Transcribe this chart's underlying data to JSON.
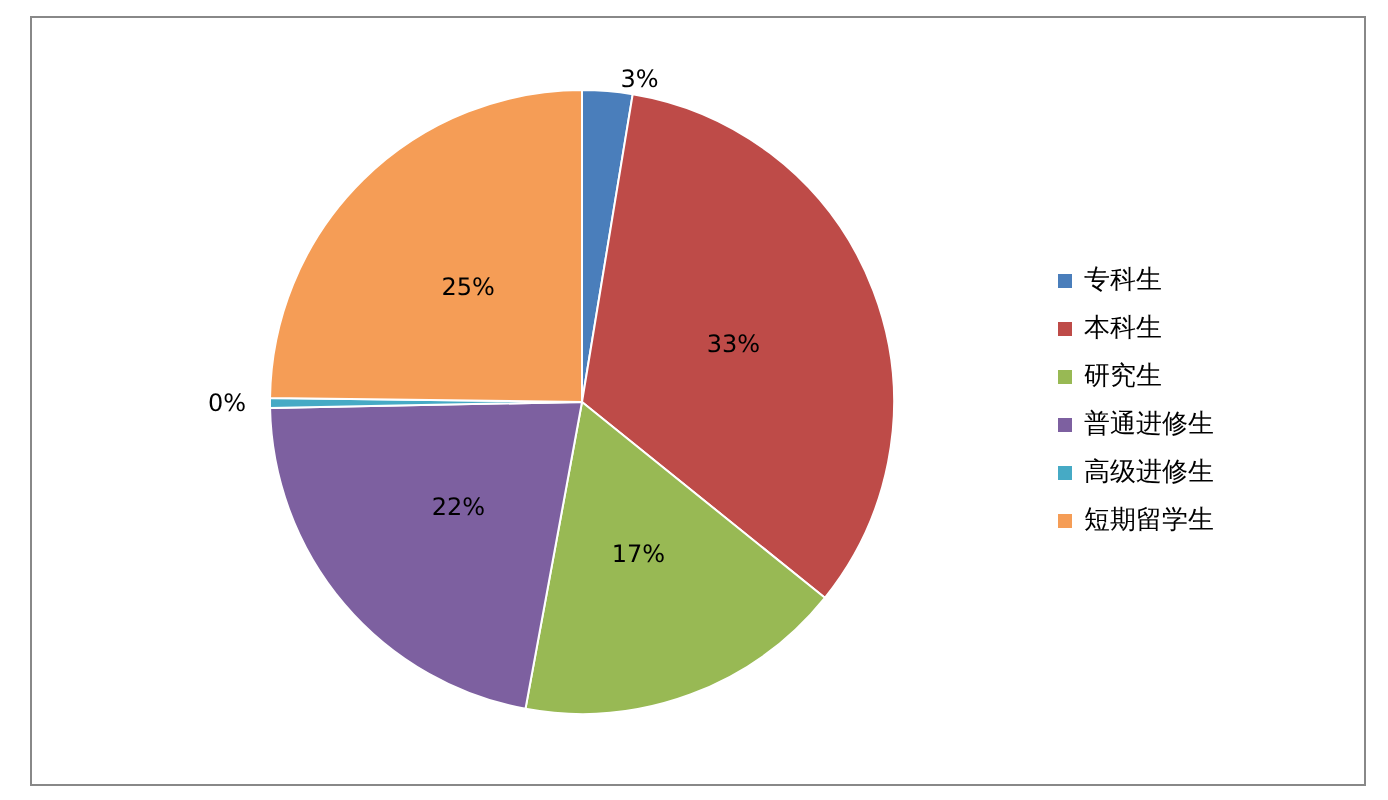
{
  "chart_data": {
    "type": "pie",
    "categories": [
      "专科生",
      "本科生",
      "研究生",
      "普通进修生",
      "高级进修生",
      "短期留学生"
    ],
    "values": [
      2.6,
      33.2,
      17.1,
      21.8,
      0.5,
      24.8
    ],
    "colors": [
      "#4a7ebb",
      "#be4b48",
      "#98b954",
      "#7d60a0",
      "#46aac5",
      "#f59d56"
    ],
    "value_labels": [
      "3%",
      "33%",
      "17%",
      "22%",
      "0%",
      "25%"
    ],
    "legend": "right"
  }
}
